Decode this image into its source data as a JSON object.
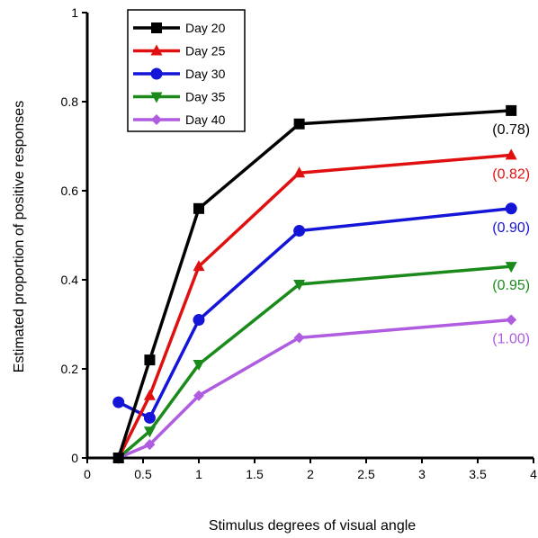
{
  "chart_data": {
    "type": "line",
    "xlabel": "Stimulus degrees of visual angle",
    "ylabel": "Estimated proportion of positive responses",
    "xlim": [
      0,
      4
    ],
    "ylim": [
      0,
      1
    ],
    "x_ticks": [
      "0",
      "0.5",
      "1",
      "1.5",
      "2",
      "2.5",
      "3",
      "3.5",
      "4"
    ],
    "y_ticks": [
      "0",
      "0.2",
      "0.4",
      "0.6",
      "0.8",
      "1"
    ],
    "x": [
      0.28,
      0.56,
      1.0,
      1.9,
      3.8
    ],
    "legend_position": "top-left",
    "series": [
      {
        "name": "Day 20",
        "color": "#000000",
        "marker": "square",
        "values": [
          0.0,
          0.22,
          0.56,
          0.75,
          0.78
        ],
        "end_label": "(0.78)"
      },
      {
        "name": "Day 25",
        "color": "#e01010",
        "marker": "triangle-up",
        "values": [
          0.0,
          0.14,
          0.43,
          0.64,
          0.68
        ],
        "end_label": "(0.82)"
      },
      {
        "name": "Day 30",
        "color": "#1515d8",
        "marker": "circle",
        "values": [
          0.125,
          0.09,
          0.31,
          0.51,
          0.56
        ],
        "end_label": "(0.90)"
      },
      {
        "name": "Day 35",
        "color": "#1a8a1a",
        "marker": "triangle-down",
        "values": [
          0.0,
          0.06,
          0.21,
          0.39,
          0.43
        ],
        "end_label": "(0.95)"
      },
      {
        "name": "Day 40",
        "color": "#b05ce0",
        "marker": "diamond",
        "values": [
          0.0,
          0.03,
          0.14,
          0.27,
          0.31
        ],
        "end_label": "(1.00)"
      }
    ]
  }
}
